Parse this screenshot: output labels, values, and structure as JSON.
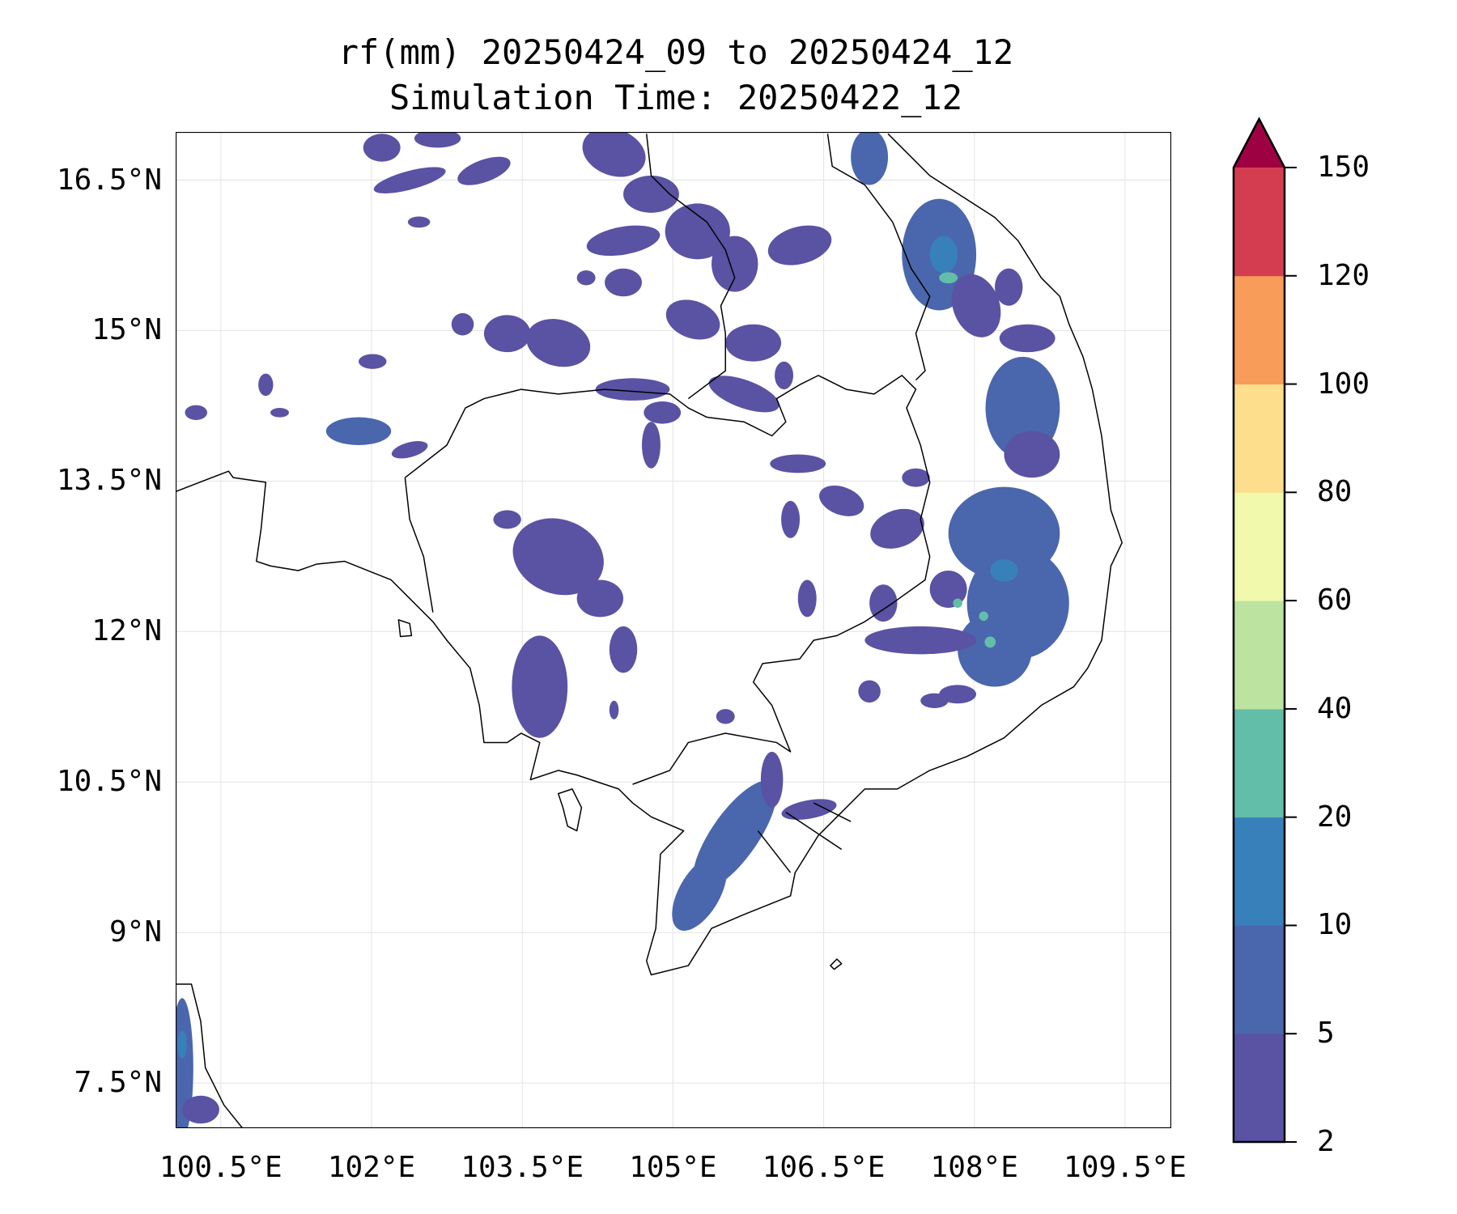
{
  "title": {
    "line1": "rf(mm) 20250424_09 to 20250424_12",
    "line2": "Simulation Time: 20250422_12"
  },
  "chart_data": {
    "type": "heatmap",
    "variable": "rf(mm)",
    "title": "rf(mm) 20250424_09 to 20250424_12 / Simulation Time: 20250422_12",
    "lon_range": [
      100.05,
      109.96
    ],
    "lat_range": [
      7.05,
      16.98
    ],
    "grid": true,
    "x_ticks": [
      "100.5°E",
      "102°E",
      "103.5°E",
      "105°E",
      "106.5°E",
      "108°E",
      "109.5°E"
    ],
    "x_tick_values": [
      100.5,
      102,
      103.5,
      105,
      106.5,
      108,
      109.5
    ],
    "y_ticks": [
      "16.5°N",
      "15°N",
      "13.5°N",
      "12°N",
      "10.5°N",
      "9°N",
      "7.5°N"
    ],
    "y_tick_values": [
      16.5,
      15,
      13.5,
      12,
      10.5,
      9,
      7.5
    ],
    "colorbar": {
      "levels": [
        "2",
        "5",
        "10",
        "20",
        "40",
        "60",
        "80",
        "100",
        "120",
        "150"
      ],
      "colors": [
        "#5a52a3",
        "#4a66ad",
        "#3880ba",
        "#62bea9",
        "#bce4a0",
        "#f1f9ad",
        "#fcde8c",
        "#f89c59",
        "#d43d50"
      ],
      "extend_max_color": "#9e0142",
      "extend": "max",
      "placement": "right"
    },
    "max_observed_band": "20-40"
  }
}
